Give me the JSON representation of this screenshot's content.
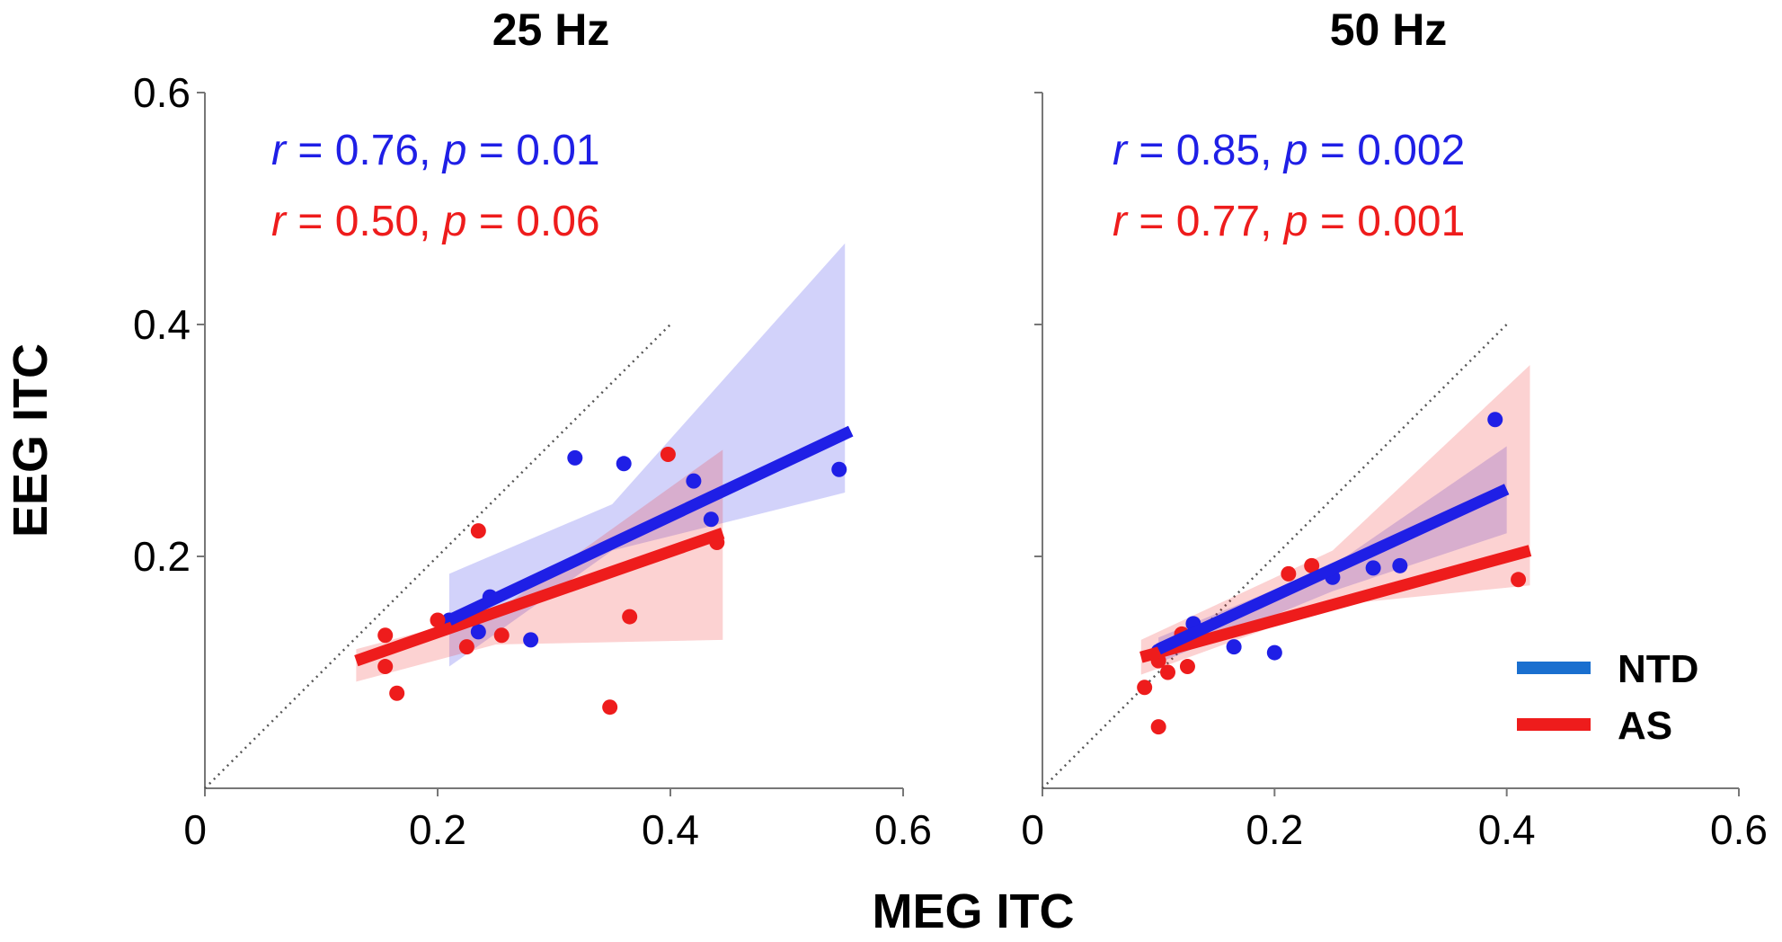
{
  "chart_data": [
    {
      "type": "scatter",
      "title": "25 Hz",
      "xlim": [
        0,
        0.6
      ],
      "ylim": [
        0,
        0.6
      ],
      "xticks": [
        "0",
        "0.2",
        "0.4",
        "0.6"
      ],
      "yticks": [
        "0.2",
        "0.4",
        "0.6"
      ],
      "identity_line": [
        [
          0,
          0
        ],
        [
          0.4,
          0.4
        ]
      ],
      "series": [
        {
          "name": "NTD",
          "color": "#1f1fe6",
          "stat": {
            "r_letter": "r",
            "r_text": " = 0.76, ",
            "p_letter": "p",
            "p_text": " = 0.01"
          },
          "points": [
            [
              0.21,
              0.145
            ],
            [
              0.235,
              0.135
            ],
            [
              0.245,
              0.165
            ],
            [
              0.28,
              0.128
            ],
            [
              0.318,
              0.285
            ],
            [
              0.36,
              0.28
            ],
            [
              0.42,
              0.265
            ],
            [
              0.435,
              0.232
            ],
            [
              0.545,
              0.275
            ]
          ],
          "fit": [
            [
              0.21,
              0.145
            ],
            [
              0.555,
              0.308
            ]
          ],
          "ci_upper": [
            [
              0.21,
              0.185
            ],
            [
              0.35,
              0.245
            ],
            [
              0.55,
              0.47
            ]
          ],
          "ci_lower": [
            [
              0.55,
              0.255
            ],
            [
              0.35,
              0.205
            ],
            [
              0.21,
              0.105
            ]
          ]
        },
        {
          "name": "AS",
          "color": "#ee1c1c",
          "stat": {
            "r_letter": "r",
            "r_text": " = 0.50, ",
            "p_letter": "p",
            "p_text": " = 0.06"
          },
          "points": [
            [
              0.155,
              0.132
            ],
            [
              0.155,
              0.105
            ],
            [
              0.165,
              0.082
            ],
            [
              0.2,
              0.145
            ],
            [
              0.225,
              0.122
            ],
            [
              0.235,
              0.222
            ],
            [
              0.255,
              0.132
            ],
            [
              0.348,
              0.07
            ],
            [
              0.365,
              0.148
            ],
            [
              0.398,
              0.288
            ],
            [
              0.44,
              0.212
            ]
          ],
          "fit": [
            [
              0.13,
              0.11
            ],
            [
              0.445,
              0.22
            ]
          ],
          "ci_upper": [
            [
              0.13,
              0.12
            ],
            [
              0.25,
              0.152
            ],
            [
              0.445,
              0.292
            ]
          ],
          "ci_lower": [
            [
              0.445,
              0.128
            ],
            [
              0.25,
              0.124
            ],
            [
              0.13,
              0.092
            ]
          ]
        }
      ]
    },
    {
      "type": "scatter",
      "title": "50 Hz",
      "xlim": [
        0,
        0.6
      ],
      "ylim": [
        0,
        0.6
      ],
      "xticks": [
        "0",
        "0.2",
        "0.4",
        "0.6"
      ],
      "yticks": [],
      "identity_line": [
        [
          0,
          0
        ],
        [
          0.4,
          0.4
        ]
      ],
      "series": [
        {
          "name": "NTD",
          "color": "#1f1fe6",
          "stat": {
            "r_letter": "r",
            "r_text": " = 0.85, ",
            "p_letter": "p",
            "p_text": " = 0.002"
          },
          "points": [
            [
              0.1,
              0.118
            ],
            [
              0.13,
              0.142
            ],
            [
              0.165,
              0.122
            ],
            [
              0.2,
              0.117
            ],
            [
              0.25,
              0.182
            ],
            [
              0.285,
              0.19
            ],
            [
              0.308,
              0.192
            ],
            [
              0.39,
              0.318
            ]
          ],
          "fit": [
            [
              0.1,
              0.12
            ],
            [
              0.4,
              0.258
            ]
          ],
          "ci_upper": [
            [
              0.1,
              0.13
            ],
            [
              0.25,
              0.192
            ],
            [
              0.4,
              0.295
            ]
          ],
          "ci_lower": [
            [
              0.4,
              0.22
            ],
            [
              0.25,
              0.17
            ],
            [
              0.1,
              0.108
            ]
          ]
        },
        {
          "name": "AS",
          "color": "#ee1c1c",
          "stat": {
            "r_letter": "r",
            "r_text": " = 0.77, ",
            "p_letter": "p",
            "p_text": " = 0.001"
          },
          "points": [
            [
              0.088,
              0.087
            ],
            [
              0.1,
              0.053
            ],
            [
              0.1,
              0.11
            ],
            [
              0.108,
              0.1
            ],
            [
              0.12,
              0.133
            ],
            [
              0.125,
              0.105
            ],
            [
              0.212,
              0.185
            ],
            [
              0.232,
              0.192
            ],
            [
              0.41,
              0.18
            ]
          ],
          "fit": [
            [
              0.085,
              0.113
            ],
            [
              0.42,
              0.205
            ]
          ],
          "ci_upper": [
            [
              0.085,
              0.128
            ],
            [
              0.25,
              0.205
            ],
            [
              0.42,
              0.365
            ]
          ],
          "ci_lower": [
            [
              0.42,
              0.175
            ],
            [
              0.25,
              0.158
            ],
            [
              0.085,
              0.098
            ]
          ]
        }
      ]
    }
  ],
  "shared": {
    "xlabel": "MEG ITC",
    "ylabel": "EEG ITC",
    "legend": {
      "placement": "bottom-right",
      "items": [
        {
          "label": "NTD",
          "color": "#1a6fcf"
        },
        {
          "label": "AS",
          "color": "#ee1c1c"
        }
      ]
    }
  }
}
